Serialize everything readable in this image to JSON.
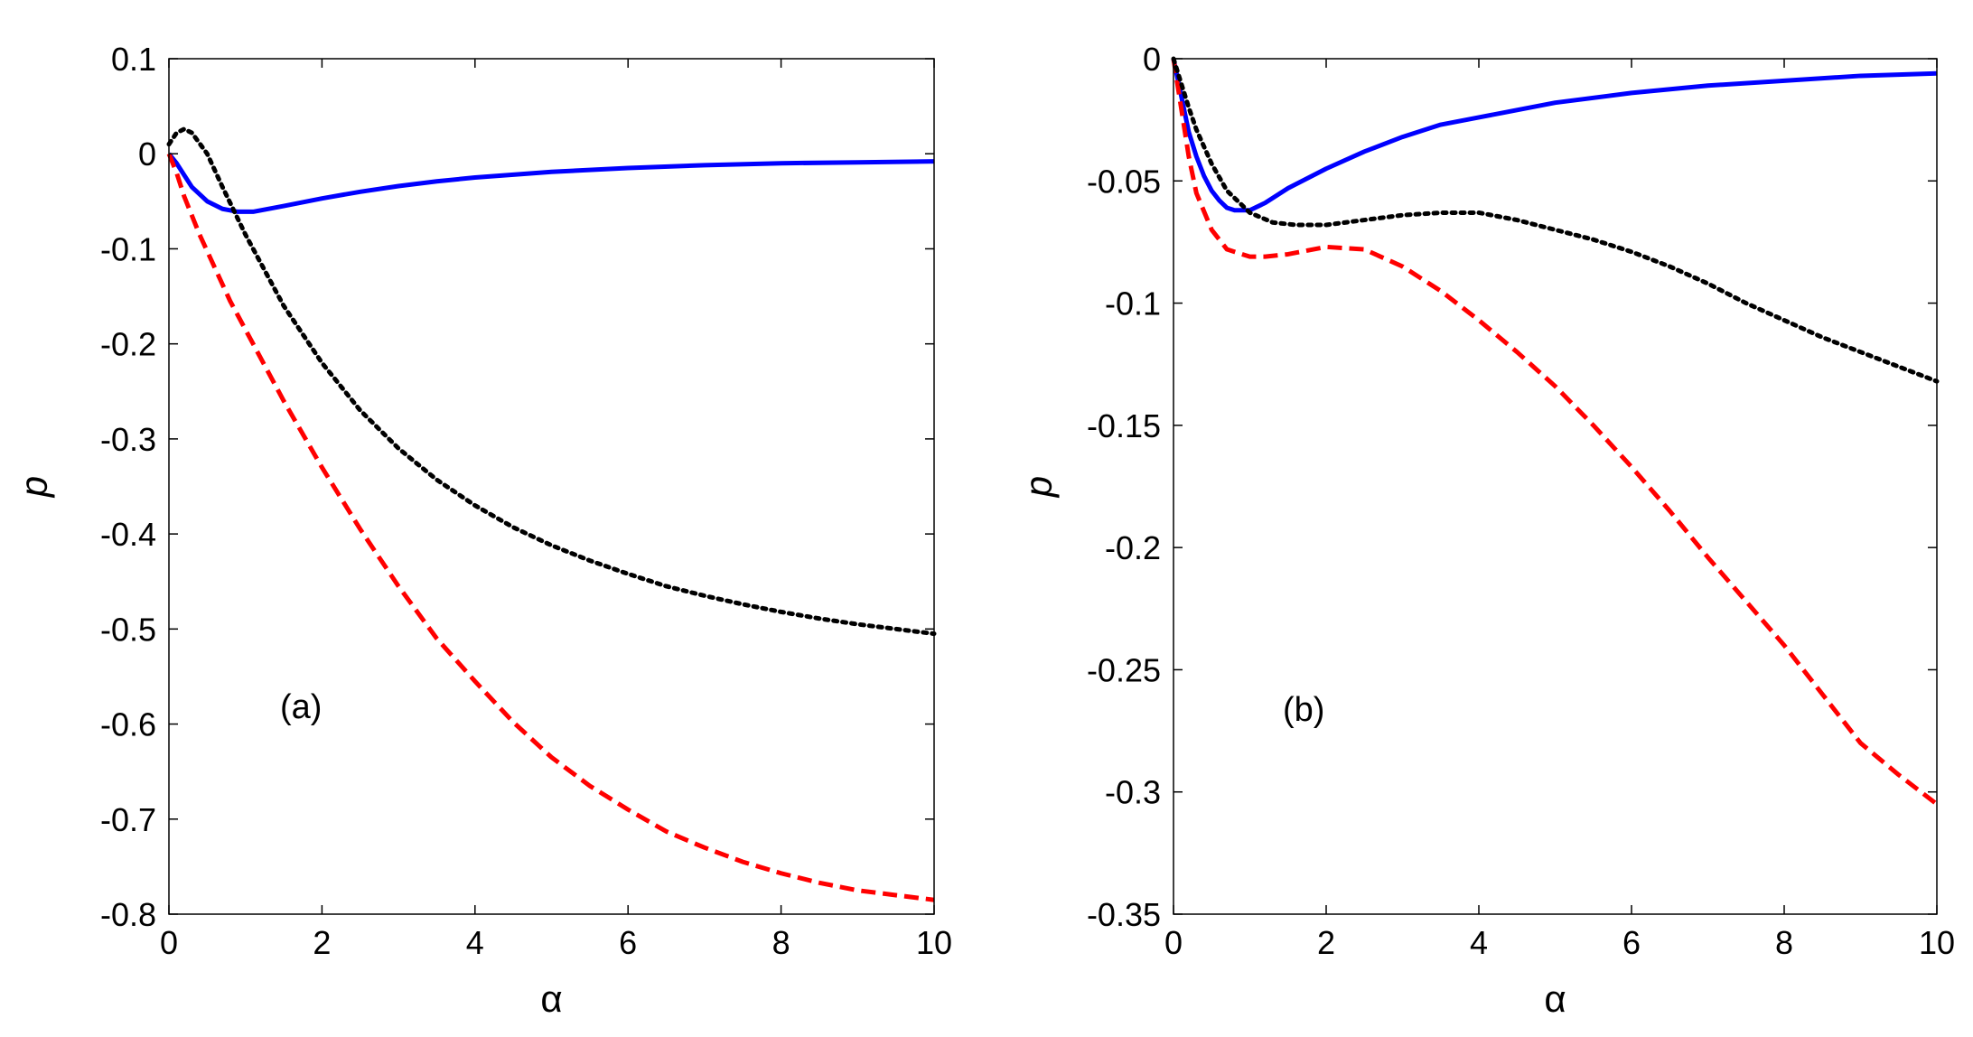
{
  "chart_data": [
    {
      "type": "line",
      "panel": "a",
      "annotation": "(a)",
      "xlabel": "α",
      "ylabel": "p",
      "xlim": [
        0,
        10
      ],
      "ylim": [
        -0.8,
        0.1
      ],
      "xticks": [
        0,
        2,
        4,
        6,
        8,
        10
      ],
      "xtick_labels": [
        "0",
        "2",
        "4",
        "6",
        "8",
        "10"
      ],
      "yticks": [
        0.1,
        0,
        -0.1,
        -0.2,
        -0.3,
        -0.4,
        -0.5,
        -0.6,
        -0.7,
        -0.8
      ],
      "ytick_labels": [
        "0.1",
        "0",
        "-0.1",
        "-0.2",
        "-0.3",
        "-0.4",
        "-0.5",
        "-0.6",
        "-0.7",
        "-0.8"
      ],
      "series": [
        {
          "name": "solid",
          "style": "solid",
          "color": "#0000ff",
          "x": [
            0,
            0.1,
            0.3,
            0.5,
            0.7,
            0.9,
            1.1,
            1.5,
            2,
            2.5,
            3,
            3.5,
            4,
            5,
            6,
            7,
            8,
            9,
            10
          ],
          "y": [
            0.0,
            -0.01,
            -0.035,
            -0.05,
            -0.058,
            -0.061,
            -0.061,
            -0.055,
            -0.047,
            -0.04,
            -0.034,
            -0.029,
            -0.025,
            -0.019,
            -0.015,
            -0.012,
            -0.01,
            -0.009,
            -0.008
          ]
        },
        {
          "name": "dashed",
          "style": "dashed",
          "color": "#ff0000",
          "x": [
            0,
            0.1,
            0.2,
            0.4,
            0.6,
            0.8,
            1,
            1.5,
            2,
            2.5,
            3,
            3.5,
            4,
            4.5,
            5,
            5.5,
            6,
            6.5,
            7,
            7.5,
            8,
            8.5,
            9,
            9.5,
            10
          ],
          "y": [
            0.0,
            -0.02,
            -0.045,
            -0.085,
            -0.12,
            -0.155,
            -0.185,
            -0.26,
            -0.33,
            -0.395,
            -0.455,
            -0.51,
            -0.555,
            -0.598,
            -0.635,
            -0.665,
            -0.69,
            -0.713,
            -0.73,
            -0.745,
            -0.757,
            -0.767,
            -0.775,
            -0.78,
            -0.785
          ]
        },
        {
          "name": "dotted",
          "style": "dotted",
          "color": "#000000",
          "x": [
            0,
            0.1,
            0.2,
            0.3,
            0.5,
            0.7,
            1,
            1.5,
            2,
            2.5,
            3,
            3.5,
            4,
            4.5,
            5,
            5.5,
            6,
            6.5,
            7,
            7.5,
            8,
            8.5,
            9,
            9.5,
            10
          ],
          "y": [
            0.01,
            0.022,
            0.026,
            0.022,
            0.0,
            -0.035,
            -0.085,
            -0.16,
            -0.22,
            -0.27,
            -0.31,
            -0.343,
            -0.37,
            -0.393,
            -0.412,
            -0.428,
            -0.442,
            -0.455,
            -0.465,
            -0.474,
            -0.482,
            -0.489,
            -0.495,
            -0.5,
            -0.505
          ]
        }
      ]
    },
    {
      "type": "line",
      "panel": "b",
      "annotation": "(b)",
      "xlabel": "α",
      "ylabel": "p",
      "xlim": [
        0,
        10
      ],
      "ylim": [
        -0.35,
        0
      ],
      "xticks": [
        0,
        2,
        4,
        6,
        8,
        10
      ],
      "xtick_labels": [
        "0",
        "2",
        "4",
        "6",
        "8",
        "10"
      ],
      "yticks": [
        0,
        -0.05,
        -0.1,
        -0.15,
        -0.2,
        -0.25,
        -0.3,
        -0.35
      ],
      "ytick_labels": [
        "0",
        "-0.05",
        "-0.1",
        "-0.15",
        "-0.2",
        "-0.25",
        "-0.3",
        "-0.35"
      ],
      "series": [
        {
          "name": "solid",
          "style": "solid",
          "color": "#0000ff",
          "x": [
            0,
            0.1,
            0.2,
            0.3,
            0.4,
            0.5,
            0.6,
            0.7,
            0.8,
            0.9,
            1,
            1.2,
            1.5,
            2,
            2.5,
            3,
            3.5,
            4,
            4.5,
            5,
            6,
            7,
            8,
            9,
            10
          ],
          "y": [
            0.0,
            -0.015,
            -0.03,
            -0.04,
            -0.048,
            -0.054,
            -0.058,
            -0.061,
            -0.062,
            -0.062,
            -0.062,
            -0.059,
            -0.053,
            -0.045,
            -0.038,
            -0.032,
            -0.027,
            -0.024,
            -0.021,
            -0.018,
            -0.014,
            -0.011,
            -0.009,
            -0.007,
            -0.006
          ]
        },
        {
          "name": "dashed",
          "style": "dashed",
          "color": "#ff0000",
          "x": [
            0,
            0.1,
            0.2,
            0.3,
            0.5,
            0.7,
            0.9,
            1,
            1.2,
            1.5,
            2,
            2.5,
            3,
            3.5,
            4,
            4.5,
            5,
            5.5,
            6,
            6.5,
            7,
            7.5,
            8,
            8.5,
            9,
            9.5,
            10
          ],
          "y": [
            0.0,
            -0.02,
            -0.04,
            -0.055,
            -0.07,
            -0.078,
            -0.08,
            -0.081,
            -0.081,
            -0.08,
            -0.077,
            -0.078,
            -0.085,
            -0.095,
            -0.107,
            -0.12,
            -0.134,
            -0.15,
            -0.167,
            -0.185,
            -0.204,
            -0.222,
            -0.24,
            -0.26,
            -0.28,
            -0.293,
            -0.305
          ]
        },
        {
          "name": "dotted",
          "style": "dotted",
          "color": "#000000",
          "x": [
            0,
            0.1,
            0.2,
            0.3,
            0.5,
            0.7,
            1,
            1.3,
            1.6,
            2,
            2.5,
            3,
            3.5,
            4,
            4.5,
            5,
            5.5,
            6,
            6.5,
            7,
            7.5,
            8,
            8.5,
            9,
            9.5,
            10
          ],
          "y": [
            0.0,
            -0.01,
            -0.02,
            -0.029,
            -0.043,
            -0.054,
            -0.063,
            -0.067,
            -0.068,
            -0.068,
            -0.066,
            -0.064,
            -0.063,
            -0.063,
            -0.066,
            -0.07,
            -0.074,
            -0.079,
            -0.085,
            -0.092,
            -0.1,
            -0.107,
            -0.114,
            -0.12,
            -0.126,
            -0.132
          ]
        }
      ]
    }
  ]
}
